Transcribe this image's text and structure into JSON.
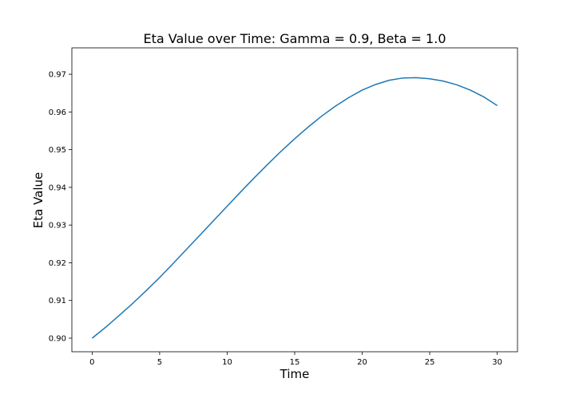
{
  "chart_data": {
    "type": "line",
    "title": "Eta Value over Time: Gamma = 0.9, Beta = 1.0",
    "xlabel": "Time",
    "ylabel": "Eta Value",
    "xlim": [
      -1.5,
      31.5
    ],
    "ylim": [
      0.8964,
      0.977
    ],
    "xticks": [
      0,
      5,
      10,
      15,
      20,
      25,
      30
    ],
    "xtick_labels": [
      "0",
      "5",
      "10",
      "15",
      "20",
      "25",
      "30"
    ],
    "yticks": [
      0.9,
      0.91,
      0.92,
      0.93,
      0.94,
      0.95,
      0.96,
      0.97
    ],
    "ytick_labels": [
      "0.90",
      "0.91",
      "0.92",
      "0.93",
      "0.94",
      "0.95",
      "0.96",
      "0.97"
    ],
    "grid": false,
    "series": [
      {
        "color": "#1f77b4",
        "x": [
          0,
          1,
          2,
          3,
          4,
          5,
          6,
          7,
          8,
          9,
          10,
          11,
          12,
          13,
          14,
          15,
          16,
          17,
          18,
          19,
          20,
          21,
          22,
          23,
          24,
          25,
          26,
          27,
          28,
          29,
          30
        ],
        "y": [
          0.9,
          0.9029,
          0.906,
          0.9092,
          0.9126,
          0.9161,
          0.9198,
          0.9236,
          0.9274,
          0.9312,
          0.935,
          0.9388,
          0.9425,
          0.9461,
          0.9496,
          0.9529,
          0.956,
          0.9589,
          0.9615,
          0.9638,
          0.9658,
          0.9673,
          0.9684,
          0.969,
          0.9691,
          0.9688,
          0.9682,
          0.9672,
          0.9658,
          0.964,
          0.9617
        ]
      }
    ]
  }
}
